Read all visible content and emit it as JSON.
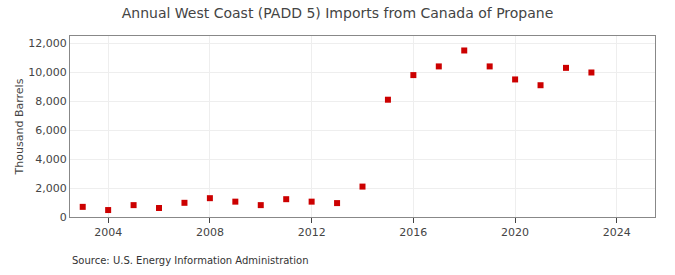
{
  "chart_data": {
    "type": "scatter",
    "title": "Annual West Coast (PADD 5) Imports from Canada of Propane",
    "ylabel": "Thousand Barrels",
    "source": "Source: U.S. Energy Information Administration",
    "x": [
      2003,
      2004,
      2005,
      2006,
      2007,
      2008,
      2009,
      2010,
      2011,
      2012,
      2013,
      2014,
      2015,
      2016,
      2017,
      2018,
      2019,
      2020,
      2021,
      2022,
      2023
    ],
    "values": [
      700,
      480,
      820,
      620,
      980,
      1300,
      1060,
      820,
      1230,
      1060,
      960,
      2100,
      8100,
      9800,
      10400,
      11500,
      10400,
      9500,
      9100,
      10300,
      9980
    ],
    "color": "#cc0000",
    "marker": "square",
    "xlim": [
      2002.5,
      2025.5
    ],
    "ylim": [
      0,
      12500
    ],
    "xticks": [
      2004,
      2008,
      2012,
      2016,
      2020,
      2024
    ],
    "yticks": [
      0,
      {
        "value": 2000,
        "label": "2,000"
      },
      {
        "value": 4000,
        "label": "4,000"
      },
      {
        "value": 6000,
        "label": "6,000"
      },
      {
        "value": 8000,
        "label": "8,000"
      },
      {
        "value": 10000,
        "label": "10,000"
      },
      {
        "value": 12000,
        "label": "12,000"
      }
    ],
    "grid": true
  }
}
